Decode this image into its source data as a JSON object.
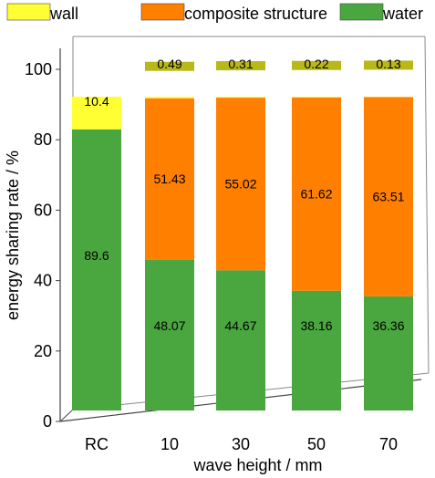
{
  "chart_data": {
    "type": "bar",
    "stacked": true,
    "style": "3d",
    "categories": [
      "RC",
      "10",
      "30",
      "50",
      "70"
    ],
    "series": [
      {
        "name": "water",
        "color": "#4aa63f",
        "top_color": "#2f7f2b",
        "values": [
          89.6,
          48.07,
          44.67,
          38.16,
          36.36
        ]
      },
      {
        "name": "composite structure",
        "color": "#ff7f00",
        "top_color": "#b35900",
        "values": [
          0,
          51.43,
          55.02,
          61.62,
          63.51
        ]
      },
      {
        "name": "wall",
        "color": "#ffff33",
        "top_color": "#b8b81a",
        "values": [
          10.4,
          0.49,
          0.31,
          0.22,
          0.13
        ]
      }
    ],
    "data_labels": [
      {
        "series": "water",
        "labels": [
          "89.6",
          "48.07",
          "44.67",
          "38.16",
          "36.36"
        ]
      },
      {
        "series": "composite structure",
        "labels": [
          "",
          "51.43",
          "55.02",
          "61.62",
          "63.51"
        ]
      },
      {
        "series": "wall",
        "labels": [
          "10.4",
          "0.49",
          "0.31",
          "0.22",
          "0.13"
        ]
      }
    ],
    "legend_order": [
      "wall",
      "composite structure",
      "water"
    ],
    "legend_placement": "top",
    "xlabel": "wave height / mm",
    "ylabel": "energy sharing rate / %",
    "ylim": [
      0,
      100
    ],
    "yticks": [
      "0",
      "20",
      "40",
      "60",
      "80",
      "100"
    ],
    "grid": false
  }
}
